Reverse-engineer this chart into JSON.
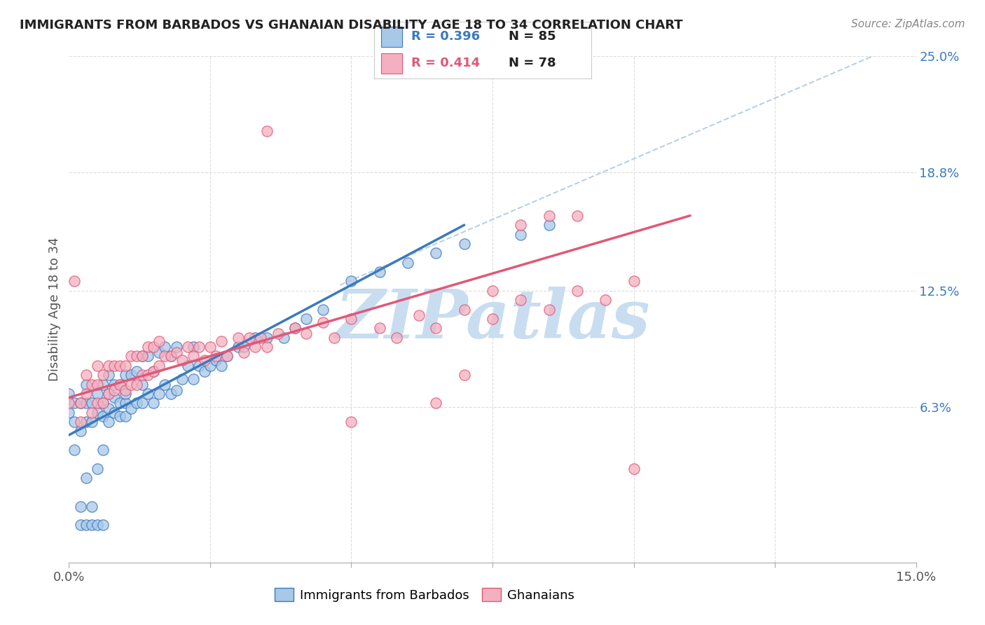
{
  "title": "IMMIGRANTS FROM BARBADOS VS GHANAIAN DISABILITY AGE 18 TO 34 CORRELATION CHART",
  "source": "Source: ZipAtlas.com",
  "ylabel": "Disability Age 18 to 34",
  "xlim": [
    0.0,
    0.15
  ],
  "ylim": [
    -0.02,
    0.25
  ],
  "ytick_labels": [
    "6.3%",
    "12.5%",
    "18.8%",
    "25.0%"
  ],
  "ytick_positions": [
    0.063,
    0.125,
    0.188,
    0.25
  ],
  "blue_color": "#a8c8e8",
  "pink_color": "#f4b0c0",
  "blue_line_color": "#3a7abf",
  "pink_line_color": "#e05878",
  "dashed_line_color": "#b0cce0",
  "watermark": "ZIPatlas",
  "watermark_color": "#c8ddf0",
  "blue_scatter_x": [
    0.0,
    0.0,
    0.001,
    0.001,
    0.001,
    0.002,
    0.002,
    0.002,
    0.002,
    0.003,
    0.003,
    0.003,
    0.003,
    0.003,
    0.004,
    0.004,
    0.004,
    0.004,
    0.005,
    0.005,
    0.005,
    0.005,
    0.006,
    0.006,
    0.006,
    0.006,
    0.006,
    0.007,
    0.007,
    0.007,
    0.007,
    0.008,
    0.008,
    0.008,
    0.009,
    0.009,
    0.009,
    0.01,
    0.01,
    0.01,
    0.01,
    0.011,
    0.011,
    0.012,
    0.012,
    0.013,
    0.013,
    0.013,
    0.014,
    0.014,
    0.015,
    0.015,
    0.016,
    0.016,
    0.017,
    0.017,
    0.018,
    0.018,
    0.019,
    0.019,
    0.02,
    0.021,
    0.022,
    0.022,
    0.023,
    0.024,
    0.025,
    0.026,
    0.027,
    0.028,
    0.03,
    0.031,
    0.033,
    0.035,
    0.038,
    0.04,
    0.042,
    0.045,
    0.05,
    0.055,
    0.06,
    0.065,
    0.07,
    0.08,
    0.085
  ],
  "blue_scatter_y": [
    0.06,
    0.07,
    0.04,
    0.055,
    0.065,
    0.0,
    0.01,
    0.05,
    0.065,
    0.0,
    0.025,
    0.055,
    0.065,
    0.075,
    0.0,
    0.01,
    0.055,
    0.065,
    0.0,
    0.03,
    0.06,
    0.07,
    0.0,
    0.04,
    0.058,
    0.065,
    0.075,
    0.055,
    0.062,
    0.07,
    0.08,
    0.06,
    0.068,
    0.075,
    0.058,
    0.065,
    0.075,
    0.058,
    0.065,
    0.07,
    0.08,
    0.062,
    0.08,
    0.065,
    0.082,
    0.065,
    0.075,
    0.09,
    0.07,
    0.09,
    0.065,
    0.082,
    0.07,
    0.092,
    0.075,
    0.095,
    0.07,
    0.09,
    0.072,
    0.095,
    0.078,
    0.085,
    0.078,
    0.095,
    0.085,
    0.082,
    0.085,
    0.088,
    0.085,
    0.09,
    0.095,
    0.095,
    0.1,
    0.1,
    0.1,
    0.105,
    0.11,
    0.115,
    0.13,
    0.135,
    0.14,
    0.145,
    0.15,
    0.155,
    0.16
  ],
  "pink_scatter_x": [
    0.0,
    0.001,
    0.002,
    0.002,
    0.003,
    0.003,
    0.004,
    0.004,
    0.005,
    0.005,
    0.005,
    0.006,
    0.006,
    0.007,
    0.007,
    0.008,
    0.008,
    0.009,
    0.009,
    0.01,
    0.01,
    0.011,
    0.011,
    0.012,
    0.012,
    0.013,
    0.013,
    0.014,
    0.014,
    0.015,
    0.015,
    0.016,
    0.016,
    0.017,
    0.018,
    0.019,
    0.02,
    0.021,
    0.022,
    0.023,
    0.024,
    0.025,
    0.026,
    0.027,
    0.028,
    0.03,
    0.031,
    0.032,
    0.033,
    0.034,
    0.035,
    0.037,
    0.04,
    0.042,
    0.045,
    0.047,
    0.05,
    0.055,
    0.058,
    0.062,
    0.065,
    0.07,
    0.075,
    0.08,
    0.085,
    0.09,
    0.095,
    0.1,
    0.035,
    0.05,
    0.065,
    0.07,
    0.075,
    0.08,
    0.085,
    0.09,
    0.1
  ],
  "pink_scatter_y": [
    0.065,
    0.13,
    0.055,
    0.065,
    0.07,
    0.08,
    0.06,
    0.075,
    0.065,
    0.075,
    0.085,
    0.065,
    0.08,
    0.07,
    0.085,
    0.072,
    0.085,
    0.075,
    0.085,
    0.072,
    0.085,
    0.075,
    0.09,
    0.075,
    0.09,
    0.08,
    0.09,
    0.08,
    0.095,
    0.082,
    0.095,
    0.085,
    0.098,
    0.09,
    0.09,
    0.092,
    0.088,
    0.095,
    0.09,
    0.095,
    0.088,
    0.095,
    0.09,
    0.098,
    0.09,
    0.1,
    0.092,
    0.1,
    0.095,
    0.1,
    0.095,
    0.102,
    0.105,
    0.102,
    0.108,
    0.1,
    0.11,
    0.105,
    0.1,
    0.112,
    0.105,
    0.115,
    0.11,
    0.12,
    0.115,
    0.125,
    0.12,
    0.13,
    0.21,
    0.055,
    0.065,
    0.08,
    0.125,
    0.16,
    0.165,
    0.165,
    0.03
  ],
  "blue_line_x": [
    0.0,
    0.07
  ],
  "blue_line_y": [
    0.048,
    0.16
  ],
  "pink_line_x": [
    0.0,
    0.11
  ],
  "pink_line_y": [
    0.068,
    0.165
  ],
  "dashed_line_x": [
    0.048,
    0.15
  ],
  "dashed_line_y": [
    0.128,
    0.26
  ]
}
